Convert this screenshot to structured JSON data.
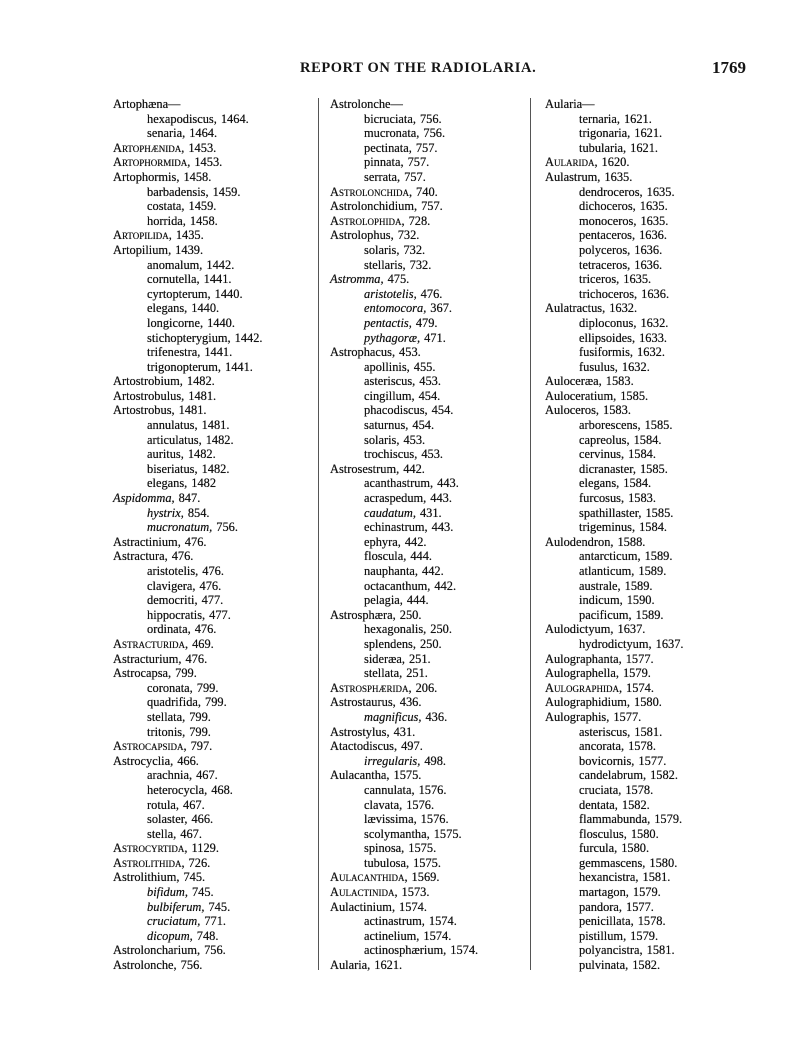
{
  "header": {
    "title": "REPORT ON THE RADIOLARIA.",
    "page_number": "1769"
  },
  "columns": [
    {
      "entries": [
        [
          "head",
          "Artophæna—",
          ""
        ],
        [
          "species",
          "hexapodiscus,",
          "1464."
        ],
        [
          "species",
          "senaria,",
          "1464."
        ],
        [
          "family",
          "Artophænida,",
          "1453."
        ],
        [
          "family",
          "Artophormida,",
          "1453."
        ],
        [
          "genus",
          "Artophormis,",
          "1458."
        ],
        [
          "species",
          "barbadensis,",
          "1459."
        ],
        [
          "species",
          "costata,",
          "1459."
        ],
        [
          "species",
          "horrida,",
          "1458."
        ],
        [
          "family",
          "Artopilida,",
          "1435."
        ],
        [
          "genus",
          "Artopilium,",
          "1439."
        ],
        [
          "species",
          "anomalum,",
          "1442."
        ],
        [
          "species",
          "cornutella,",
          "1441."
        ],
        [
          "species",
          "cyrtopterum,",
          "1440."
        ],
        [
          "species",
          "elegans,",
          "1440."
        ],
        [
          "species",
          "longicorne,",
          "1440."
        ],
        [
          "species",
          "stichopterygium,",
          "1442."
        ],
        [
          "species",
          "trifenestra,",
          "1441."
        ],
        [
          "species",
          "trigonopterum,",
          "1441."
        ],
        [
          "genus",
          "Artostrobium,",
          "1482."
        ],
        [
          "genus",
          "Artostrobulus,",
          "1481."
        ],
        [
          "genus",
          "Artostrobus,",
          "1481."
        ],
        [
          "species",
          "annulatus,",
          "1481."
        ],
        [
          "species",
          "articulatus,",
          "1482."
        ],
        [
          "species",
          "auritus,",
          "1482."
        ],
        [
          "species",
          "biseriatus,",
          "1482."
        ],
        [
          "species",
          "elegans,",
          "1482"
        ],
        [
          "genus-i",
          "Aspidomma,",
          "847."
        ],
        [
          "species-i",
          "hystrix,",
          "854."
        ],
        [
          "species-i",
          "mucronatum,",
          "756."
        ],
        [
          "genus",
          "Astractinium,",
          "476."
        ],
        [
          "genus",
          "Astractura,",
          "476."
        ],
        [
          "species",
          "aristotelis,",
          "476."
        ],
        [
          "species",
          "clavigera,",
          "476."
        ],
        [
          "species",
          "democriti,",
          "477."
        ],
        [
          "species",
          "hippocratis,",
          "477."
        ],
        [
          "species",
          "ordinata,",
          "476."
        ],
        [
          "family",
          "Astracturida,",
          "469."
        ],
        [
          "genus",
          "Astracturium,",
          "476."
        ],
        [
          "genus",
          "Astrocapsa,",
          "799."
        ],
        [
          "species",
          "coronata,",
          "799."
        ],
        [
          "species",
          "quadrifida,",
          "799."
        ],
        [
          "species",
          "stellata,",
          "799."
        ],
        [
          "species",
          "tritonis,",
          "799."
        ],
        [
          "family",
          "Astrocapsida,",
          "797."
        ],
        [
          "genus",
          "Astrocyclia,",
          "466."
        ],
        [
          "species",
          "arachnia,",
          "467."
        ],
        [
          "species",
          "heterocycla,",
          "468."
        ],
        [
          "species",
          "rotula,",
          "467."
        ],
        [
          "species",
          "solaster,",
          "466."
        ],
        [
          "species",
          "stella,",
          "467."
        ],
        [
          "family",
          "Astrocyrtida,",
          "1129."
        ],
        [
          "family",
          "Astrolithida,",
          "726."
        ],
        [
          "genus",
          "Astrolithium,",
          "745."
        ],
        [
          "species-i",
          "bifidum,",
          "745."
        ],
        [
          "species-i",
          "bulbiferum,",
          "745."
        ],
        [
          "species-i",
          "cruciatum,",
          "771."
        ],
        [
          "species-i",
          "dicopum,",
          "748."
        ],
        [
          "genus",
          "Astroloncharium,",
          "756."
        ],
        [
          "genus",
          "Astrolonche,",
          "756."
        ]
      ]
    },
    {
      "entries": [
        [
          "head",
          "Astrolonche—",
          ""
        ],
        [
          "species",
          "bicruciata,",
          "756."
        ],
        [
          "species",
          "mucronata,",
          "756."
        ],
        [
          "species",
          "pectinata,",
          "757."
        ],
        [
          "species",
          "pinnata,",
          "757."
        ],
        [
          "species",
          "serrata,",
          "757."
        ],
        [
          "family",
          "Astrolonchida,",
          "740."
        ],
        [
          "genus",
          "Astrolonchidium,",
          "757."
        ],
        [
          "family",
          "Astrolophida,",
          "728."
        ],
        [
          "genus",
          "Astrolophus,",
          "732."
        ],
        [
          "species",
          "solaris,",
          "732."
        ],
        [
          "species",
          "stellaris,",
          "732."
        ],
        [
          "genus-i",
          "Astromma,",
          "475."
        ],
        [
          "species-i",
          "aristotelis,",
          "476."
        ],
        [
          "species-i",
          "entomocora,",
          "367."
        ],
        [
          "species-i",
          "pentactis,",
          "479."
        ],
        [
          "species-i",
          "pythagoræ,",
          "471."
        ],
        [
          "genus",
          "Astrophacus,",
          "453."
        ],
        [
          "species",
          "apollinis,",
          "455."
        ],
        [
          "species",
          "asteriscus,",
          "453."
        ],
        [
          "species",
          "cingillum,",
          "454."
        ],
        [
          "species",
          "phacodiscus,",
          "454."
        ],
        [
          "species",
          "saturnus,",
          "454."
        ],
        [
          "species",
          "solaris,",
          "453."
        ],
        [
          "species",
          "trochiscus,",
          "453."
        ],
        [
          "genus",
          "Astrosestrum,",
          "442."
        ],
        [
          "species",
          "acanthastrum,",
          "443."
        ],
        [
          "species",
          "acraspedum,",
          "443."
        ],
        [
          "species-i",
          "caudatum,",
          "431."
        ],
        [
          "species",
          "echinastrum,",
          "443."
        ],
        [
          "species",
          "ephyra,",
          "442."
        ],
        [
          "species",
          "floscula,",
          "444."
        ],
        [
          "species",
          "nauphanta,",
          "442."
        ],
        [
          "species",
          "octacanthum,",
          "442."
        ],
        [
          "species",
          "pelagia,",
          "444."
        ],
        [
          "genus",
          "Astrosphæra,",
          "250."
        ],
        [
          "species",
          "hexagonalis,",
          "250."
        ],
        [
          "species",
          "splendens,",
          "250."
        ],
        [
          "species",
          "sideræa,",
          "251."
        ],
        [
          "species",
          "stellata,",
          "251."
        ],
        [
          "family",
          "Astrosphærida,",
          "206."
        ],
        [
          "genus",
          "Astrostaurus,",
          "436."
        ],
        [
          "species-i",
          "magnificus,",
          "436."
        ],
        [
          "genus",
          "Astrostylus,",
          "431."
        ],
        [
          "genus",
          "Atactodiscus,",
          "497."
        ],
        [
          "species-i",
          "irregularis,",
          "498."
        ],
        [
          "genus",
          "Aulacantha,",
          "1575."
        ],
        [
          "species",
          "cannulata,",
          "1576."
        ],
        [
          "species",
          "clavata,",
          "1576."
        ],
        [
          "species",
          "lævissima,",
          "1576."
        ],
        [
          "species",
          "scolymantha,",
          "1575."
        ],
        [
          "species",
          "spinosa,",
          "1575."
        ],
        [
          "species",
          "tubulosa,",
          "1575."
        ],
        [
          "family",
          "Aulacanthida,",
          "1569."
        ],
        [
          "family",
          "Aulactinida,",
          "1573."
        ],
        [
          "genus",
          "Aulactinium,",
          "1574."
        ],
        [
          "species",
          "actinastrum,",
          "1574."
        ],
        [
          "species",
          "actinelium,",
          "1574."
        ],
        [
          "species",
          "actinosphærium,",
          "1574."
        ],
        [
          "genus",
          "Aularia,",
          "1621."
        ]
      ]
    },
    {
      "entries": [
        [
          "head",
          "Aularia—",
          ""
        ],
        [
          "species",
          "ternaria,",
          "1621."
        ],
        [
          "species",
          "trigonaria,",
          "1621."
        ],
        [
          "species",
          "tubularia,",
          "1621."
        ],
        [
          "family",
          "Aularida,",
          "1620."
        ],
        [
          "genus",
          "Aulastrum,",
          "1635."
        ],
        [
          "species",
          "dendroceros,",
          "1635."
        ],
        [
          "species",
          "dichoceros,",
          "1635."
        ],
        [
          "species",
          "monoceros,",
          "1635."
        ],
        [
          "species",
          "pentaceros,",
          "1636."
        ],
        [
          "species",
          "polyceros,",
          "1636."
        ],
        [
          "species",
          "tetraceros,",
          "1636."
        ],
        [
          "species",
          "triceros,",
          "1635."
        ],
        [
          "species",
          "trichoceros,",
          "1636."
        ],
        [
          "genus",
          "Aulatractus,",
          "1632."
        ],
        [
          "species",
          "diploconus,",
          "1632."
        ],
        [
          "species",
          "ellipsoides,",
          "1633."
        ],
        [
          "species",
          "fusiformis,",
          "1632."
        ],
        [
          "species",
          "fusulus,",
          "1632."
        ],
        [
          "genus",
          "Auloceræa,",
          "1583."
        ],
        [
          "genus",
          "Auloceratium,",
          "1585."
        ],
        [
          "genus",
          "Auloceros,",
          "1583."
        ],
        [
          "species",
          "arborescens,",
          "1585."
        ],
        [
          "species",
          "capreolus,",
          "1584."
        ],
        [
          "species",
          "cervinus,",
          "1584."
        ],
        [
          "species",
          "dicranaster,",
          "1585."
        ],
        [
          "species",
          "elegans,",
          "1584."
        ],
        [
          "species",
          "furcosus,",
          "1583."
        ],
        [
          "species",
          "spathillaster,",
          "1585."
        ],
        [
          "species",
          "trigeminus,",
          "1584."
        ],
        [
          "genus",
          "Aulodendron,",
          "1588."
        ],
        [
          "species",
          "antarcticum,",
          "1589."
        ],
        [
          "species",
          "atlanticum,",
          "1589."
        ],
        [
          "species",
          "australe,",
          "1589."
        ],
        [
          "species",
          "indicum,",
          "1590."
        ],
        [
          "species",
          "pacificum,",
          "1589."
        ],
        [
          "genus",
          "Aulodictyum,",
          "1637."
        ],
        [
          "species",
          "hydrodictyum,",
          "1637."
        ],
        [
          "genus",
          "Aulographanta,",
          "1577."
        ],
        [
          "genus",
          "Aulographella,",
          "1579."
        ],
        [
          "family",
          "Aulographida,",
          "1574."
        ],
        [
          "genus",
          "Aulographidium,",
          "1580."
        ],
        [
          "genus",
          "Aulographis,",
          "1577."
        ],
        [
          "species",
          "asteriscus,",
          "1581."
        ],
        [
          "species",
          "ancorata,",
          "1578."
        ],
        [
          "species",
          "bovicornis,",
          "1577."
        ],
        [
          "species",
          "candelabrum,",
          "1582."
        ],
        [
          "species",
          "cruciata,",
          "1578."
        ],
        [
          "species",
          "dentata,",
          "1582."
        ],
        [
          "species",
          "flammabunda,",
          "1579."
        ],
        [
          "species",
          "flosculus,",
          "1580."
        ],
        [
          "species",
          "furcula,",
          "1580."
        ],
        [
          "species",
          "gemmascens,",
          "1580."
        ],
        [
          "species",
          "hexancistra,",
          "1581."
        ],
        [
          "species",
          "martagon,",
          "1579."
        ],
        [
          "species",
          "pandora,",
          "1577."
        ],
        [
          "species",
          "penicillata,",
          "1578."
        ],
        [
          "species",
          "pistillum,",
          "1579."
        ],
        [
          "species",
          "polyancistra,",
          "1581."
        ],
        [
          "species",
          "pulvinata,",
          "1582."
        ]
      ]
    }
  ]
}
